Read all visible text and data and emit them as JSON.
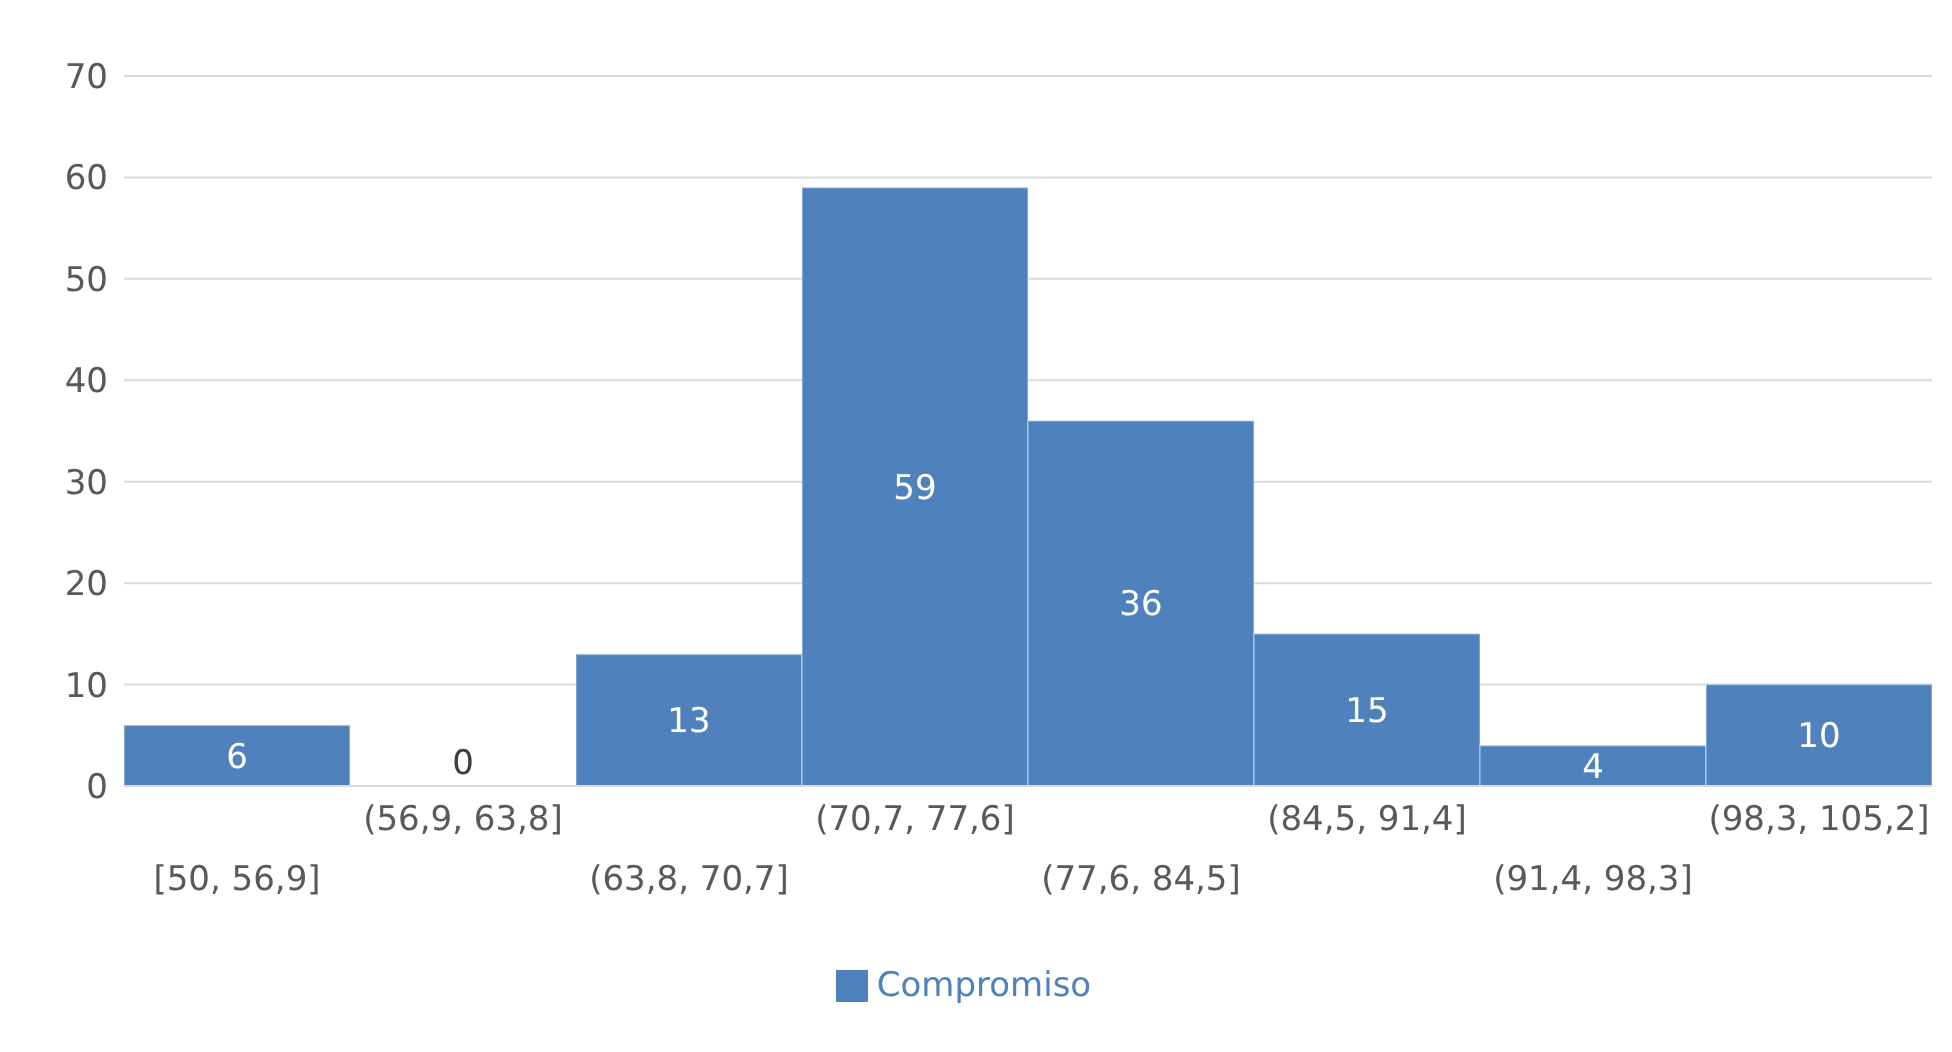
{
  "chart_data": {
    "type": "bar",
    "categories": [
      "[50, 56,9]",
      "(56,9, 63,8]",
      "(63,8, 70,7]",
      "(70,7, 77,6]",
      "(77,6, 84,5]",
      "(84,5, 91,4]",
      "(91,4, 98,3]",
      "(98,3, 105,2]"
    ],
    "series": [
      {
        "name": "Compromiso",
        "color": "#4f81bd",
        "values": [
          6,
          0,
          13,
          59,
          36,
          15,
          4,
          10
        ]
      }
    ],
    "ylim": [
      0,
      70
    ],
    "yticks": [
      0,
      10,
      20,
      30,
      40,
      50,
      60,
      70
    ],
    "grid": "y",
    "legend": "bottom",
    "data_labels": true
  }
}
